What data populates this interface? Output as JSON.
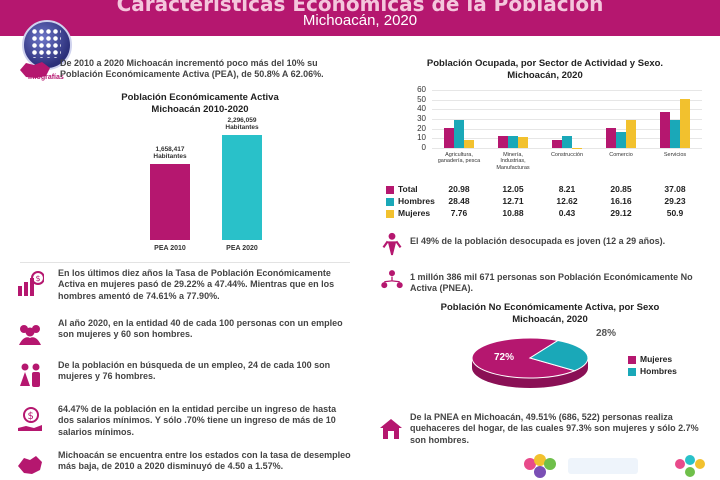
{
  "header": {
    "title": "Características Económicas de la Población",
    "subtitle": "Michoacán,  2020",
    "logo_text": "Infografías"
  },
  "intro": {
    "text": "De 2010 a 2020 Michoacán incrementó poco más del 10% su Población Económicamente Activa (PEA), de 50.8% A 62.06%."
  },
  "pea_chart": {
    "title_line1": "Población Económicamente Activa",
    "title_line2": "Michoacán 2010-2020"
  },
  "left_items": [
    {
      "icon": "salary-chart-icon",
      "text": "En los últimos diez años la Tasa de Población Económicamente Activa en mujeres pasó de 29.22% a 47.44%. Mientras que en los hombres amentó  de 74.61% a 77.90%."
    },
    {
      "icon": "people-group-icon",
      "text": "Al año 2020, en la entidad 40 de cada 100 personas con un empleo son mujeres y 60 son hombres."
    },
    {
      "icon": "woman-man-icon",
      "text": "De la población en búsqueda de un empleo,  24 de cada 100 son mujeres y 76 hombres."
    },
    {
      "icon": "money-hand-icon",
      "text": "64.47% de la población en la entidad percibe un ingreso de hasta dos salarios mínimos. Y sólo .70% tiene un ingreso de más de 10 salarios mínimos."
    },
    {
      "icon": "michoacan-map-icon",
      "text": "Michoacán se encuentra entre los estados con la tasa de desempleo más baja, de 2010 a 2020 disminuyó de 4.50 a 1.57%."
    }
  ],
  "sector_chart": {
    "title_line1": "Población Ocupada, por Sector de Actividad y Sexo.",
    "title_line2": "Michoacán, 2020"
  },
  "right_items": [
    {
      "icon": "youth-person-icon",
      "text": "El 49% de la población desocupada es joven (12 a 29 años)."
    },
    {
      "icon": "network-people-icon",
      "text": "1  millón 386 mil 671 personas son Población Económicamente No Activa (PNEA)."
    }
  ],
  "pnea_chart": {
    "title_line1": "Población No Económicamente Activa, por Sexo",
    "title_line2": "Michoacán, 2020"
  },
  "bottom_right": {
    "icon": "house-icon",
    "text": "De la PNEA en Michoacán, 49.51% (686, 522) personas realiza quehaceres del hogar, de las cuales 97.3% son  mujeres y sólo 2.7% son hombres."
  },
  "colors": {
    "magenta": "#b5176f",
    "teal": "#1aa8b8",
    "yellow": "#f2c12e",
    "pea2010": "#b5176f",
    "pea2020": "#29c1c9"
  },
  "chart_data": [
    {
      "type": "bar",
      "categories": [
        "PEA 2010",
        "PEA 2020"
      ],
      "values": [
        1658417,
        2296059
      ],
      "data_labels": [
        "1,658,417 Habitantes",
        "2,296,059 Habitantes"
      ],
      "title": "Población Económicamente Activa Michoacán 2010-2020"
    },
    {
      "type": "bar",
      "categories": [
        "Agricultura, ganadería, pesca",
        "Minería, Industrias, Manufacturas",
        "Construcción",
        "Comercio",
        "Servicios"
      ],
      "series": [
        {
          "name": "Total",
          "values": [
            20.98,
            12.05,
            8.21,
            20.85,
            37.08
          ]
        },
        {
          "name": "Hombres",
          "values": [
            28.48,
            12.71,
            12.62,
            16.16,
            29.23
          ]
        },
        {
          "name": "Mujeres",
          "values": [
            7.76,
            10.88,
            0.43,
            29.12,
            50.9
          ]
        }
      ],
      "yticks": [
        0,
        10,
        20,
        30,
        40,
        50,
        60
      ],
      "ylim": [
        0,
        60
      ],
      "grid": true,
      "title": "Población Ocupada, por Sector de Actividad y Sexo. Michoacán, 2020"
    },
    {
      "type": "pie",
      "categories": [
        "Mujeres",
        "Hombres"
      ],
      "values": [
        72,
        28
      ],
      "data_labels": [
        "72%",
        "28%"
      ],
      "title": "Población No Económicamente Activa, por Sexo Michoacán, 2020",
      "legend": "right"
    }
  ]
}
